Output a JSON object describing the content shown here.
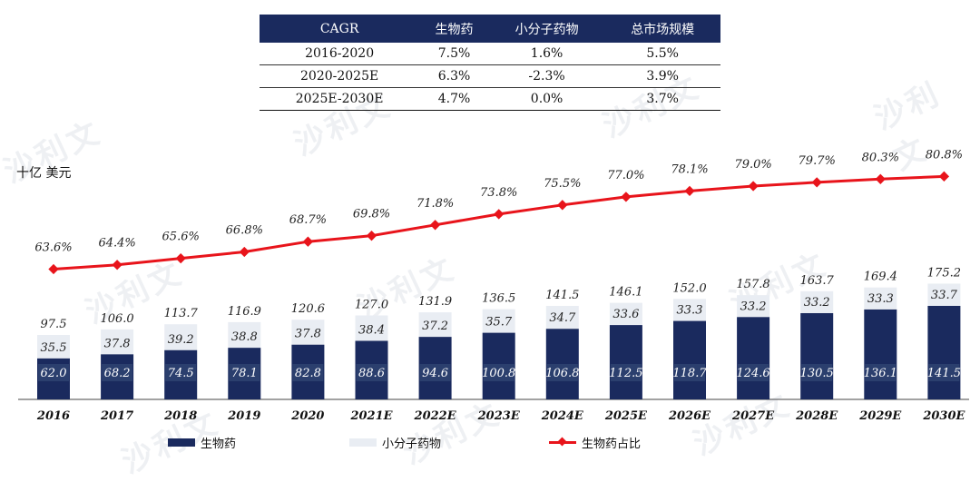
{
  "cagr_table": {
    "headers": [
      "CAGR",
      "生物药",
      "小分子药物",
      "总市场规模"
    ],
    "rows": [
      [
        "2016-2020",
        "7.5%",
        "1.6%",
        "5.5%"
      ],
      [
        "2020-2025E",
        "6.3%",
        "-2.3%",
        "3.9%"
      ],
      [
        "2025E-2030E",
        "4.7%",
        "0.0%",
        "3.7%"
      ]
    ]
  },
  "unit_label": "十亿 美元",
  "watermark_text": "沙利文",
  "chart_data": {
    "type": "bar",
    "stacked": true,
    "title": "",
    "ylabel": "十亿 美元",
    "categories": [
      "2016",
      "2017",
      "2018",
      "2019",
      "2020",
      "2021E",
      "2022E",
      "2023E",
      "2024E",
      "2025E",
      "2026E",
      "2027E",
      "2028E",
      "2029E",
      "2030E"
    ],
    "series": [
      {
        "name": "生物药",
        "color": "#1a2a5e",
        "values": [
          62.0,
          68.2,
          74.5,
          78.1,
          82.8,
          88.6,
          94.6,
          100.8,
          106.8,
          112.5,
          118.7,
          124.6,
          130.5,
          136.1,
          141.5
        ]
      },
      {
        "name": "小分子药物",
        "color": "#e9edf3",
        "values": [
          35.5,
          37.8,
          39.2,
          38.8,
          37.8,
          38.4,
          37.2,
          35.7,
          34.7,
          33.6,
          33.3,
          33.2,
          33.2,
          33.3,
          33.7
        ]
      }
    ],
    "totals": [
      97.5,
      106.0,
      113.7,
      116.9,
      120.6,
      127.0,
      131.9,
      136.5,
      141.5,
      146.1,
      152.0,
      157.8,
      163.7,
      169.4,
      175.2
    ],
    "line_series": {
      "name": "生物药占比",
      "color": "#e8141b",
      "values": [
        63.6,
        64.4,
        65.6,
        66.8,
        68.7,
        69.8,
        71.8,
        73.8,
        75.5,
        77.0,
        78.1,
        79.0,
        79.7,
        80.3,
        80.8
      ],
      "labels": [
        "63.6%",
        "64.4%",
        "65.6%",
        "66.8%",
        "68.7%",
        "69.8%",
        "71.8%",
        "73.8%",
        "75.5%",
        "77.0%",
        "78.1%",
        "79.0%",
        "79.7%",
        "80.3%",
        "80.8%"
      ]
    },
    "legend": [
      "生物药",
      "小分子药物",
      "生物药占比"
    ],
    "legend_position": "bottom",
    "grid": false
  }
}
